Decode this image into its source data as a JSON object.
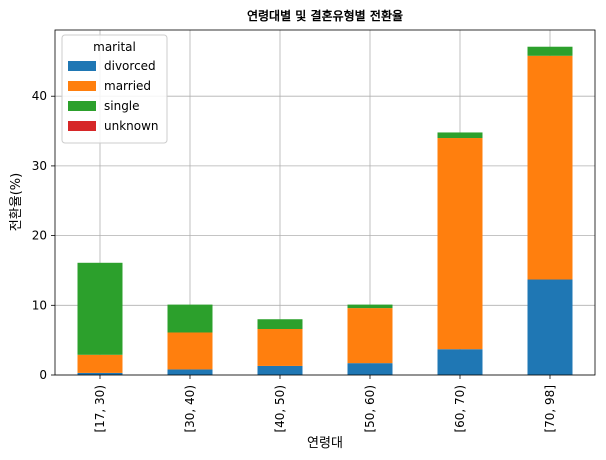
{
  "chart_data": {
    "type": "bar",
    "stacked": true,
    "title": "연령대별 및 결혼유형별 전환율",
    "xlabel": "연령대",
    "ylabel": "전환율(%)",
    "categories": [
      "[17, 30)",
      "[30, 40)",
      "[40, 50)",
      "[50, 60)",
      "[60, 70)",
      "[70, 98]"
    ],
    "series": [
      {
        "name": "divorced",
        "color": "#1f77b4",
        "values": [
          0.3,
          0.8,
          1.3,
          1.7,
          3.7,
          13.7
        ]
      },
      {
        "name": "married",
        "color": "#ff7f0e",
        "values": [
          2.6,
          5.3,
          5.3,
          7.9,
          30.3,
          32.1
        ]
      },
      {
        "name": "single",
        "color": "#2ca02c",
        "values": [
          13.2,
          4.0,
          1.4,
          0.5,
          0.8,
          1.3
        ]
      },
      {
        "name": "unknown",
        "color": "#d62728",
        "values": [
          0.0,
          0.0,
          0.0,
          0.0,
          0.0,
          0.0
        ]
      }
    ],
    "ylim": [
      0,
      49.5
    ],
    "yticks": [
      0,
      10,
      20,
      30,
      40
    ],
    "grid": true,
    "legend": {
      "title": "marital",
      "placement": "top-left"
    }
  }
}
